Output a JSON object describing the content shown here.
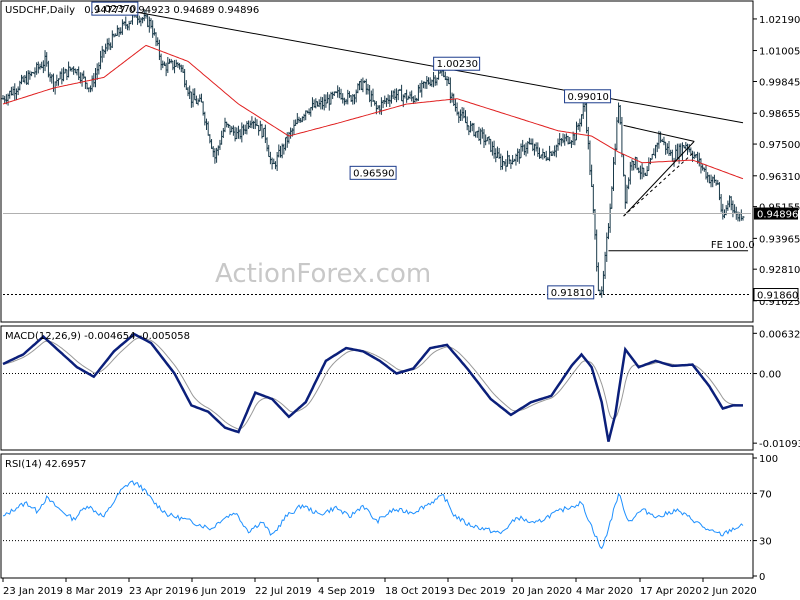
{
  "chart_data": [
    {
      "type": "candlestick",
      "title": "USDCHF,Daily",
      "ohlc_label": "0.94777 0.94923 0.94689 0.94896",
      "last_price": "0.94896",
      "ylim": [
        0.90905,
        1.02825
      ],
      "y_ticks": [
        "1.02190",
        "1.01005",
        "0.99845",
        "0.98655",
        "0.97500",
        "0.96310",
        "0.95155",
        "0.93965",
        "0.92810",
        "0.91625"
      ],
      "x_ticks": [
        "23 Jan 2019",
        "8 Mar 2019",
        "23 Apr 2019",
        "6 Jun 2019",
        "22 Jul 2019",
        "4 Sep 2019",
        "18 Oct 2019",
        "3 Dec 2019",
        "20 Jan 2020",
        "4 Mar 2020",
        "17 Apr 2020",
        "2 Jun 2020"
      ],
      "close_keypoints": [
        [
          0,
          0.992
        ],
        [
          15,
          1.0
        ],
        [
          25,
          1.006
        ],
        [
          30,
          0.998
        ],
        [
          42,
          1.004
        ],
        [
          52,
          0.996
        ],
        [
          60,
          1.01
        ],
        [
          70,
          1.018
        ],
        [
          79,
          1.0237
        ],
        [
          88,
          1.02
        ],
        [
          95,
          1.004
        ],
        [
          105,
          1.005
        ],
        [
          112,
          0.992
        ],
        [
          118,
          0.99
        ],
        [
          126,
          0.97
        ],
        [
          132,
          0.982
        ],
        [
          140,
          0.978
        ],
        [
          148,
          0.985
        ],
        [
          156,
          0.978
        ],
        [
          160,
          0.9659
        ],
        [
          170,
          0.978
        ],
        [
          180,
          0.988
        ],
        [
          190,
          0.99
        ],
        [
          200,
          0.994
        ],
        [
          206,
          0.992
        ],
        [
          214,
          0.998
        ],
        [
          222,
          0.988
        ],
        [
          232,
          0.994
        ],
        [
          244,
          0.992
        ],
        [
          252,
          0.998
        ],
        [
          262,
          1.0023
        ],
        [
          268,
          0.99
        ],
        [
          276,
          0.982
        ],
        [
          288,
          0.976
        ],
        [
          296,
          0.968
        ],
        [
          305,
          0.97
        ],
        [
          312,
          0.975
        ],
        [
          322,
          0.97
        ],
        [
          332,
          0.976
        ],
        [
          340,
          0.978
        ],
        [
          346,
          0.99
        ],
        [
          350,
          0.958
        ],
        [
          354,
          0.922
        ],
        [
          356,
          0.9181
        ],
        [
          360,
          0.945
        ],
        [
          364,
          0.975
        ],
        [
          366,
          0.9901
        ],
        [
          370,
          0.955
        ],
        [
          374,
          0.97
        ],
        [
          382,
          0.962
        ],
        [
          390,
          0.978
        ],
        [
          398,
          0.97
        ],
        [
          406,
          0.975
        ],
        [
          414,
          0.968
        ],
        [
          420,
          0.962
        ],
        [
          425,
          0.96
        ],
        [
          428,
          0.946
        ],
        [
          432,
          0.955
        ],
        [
          436,
          0.948
        ],
        [
          440,
          0.949
        ]
      ],
      "ma_keypoints": [
        [
          0,
          0.99
        ],
        [
          30,
          0.996
        ],
        [
          60,
          1.0
        ],
        [
          85,
          1.012
        ],
        [
          110,
          1.006
        ],
        [
          140,
          0.99
        ],
        [
          170,
          0.978
        ],
        [
          200,
          0.983
        ],
        [
          240,
          0.99
        ],
        [
          270,
          0.992
        ],
        [
          300,
          0.986
        ],
        [
          330,
          0.98
        ],
        [
          350,
          0.978
        ],
        [
          366,
          0.972
        ],
        [
          380,
          0.968
        ],
        [
          410,
          0.969
        ],
        [
          440,
          0.962
        ]
      ],
      "annotations": [
        {
          "label": "1.02370",
          "x": 79,
          "value": 1.0237
        },
        {
          "label": "0.96590",
          "x": 160,
          "value": 0.9659
        },
        {
          "label": "1.00230",
          "x": 262,
          "value": 1.0023
        },
        {
          "label": "0.99010",
          "x": 366,
          "value": 0.9901
        },
        {
          "label": "0.91810",
          "x": 356,
          "value": 0.9181
        },
        {
          "label": "FE 100.0",
          "x": 428,
          "value": 0.935
        },
        {
          "label": "0.91860",
          "x": 440,
          "value": 0.9186
        }
      ],
      "trendline_label_value": 0.9186,
      "watermark": "ActionForex.com"
    },
    {
      "type": "line",
      "title": "MACD(12,26,9) -0.004654 -0.005058",
      "y_ticks": [
        "0.006321",
        "0.00",
        "-0.010939"
      ],
      "ylim": [
        -0.0117,
        0.007
      ],
      "macd_keypoints": [
        [
          0,
          0.0015
        ],
        [
          12,
          0.003
        ],
        [
          24,
          0.0058
        ],
        [
          34,
          0.0034
        ],
        [
          44,
          0.001
        ],
        [
          54,
          -0.0005
        ],
        [
          66,
          0.0035
        ],
        [
          78,
          0.0062
        ],
        [
          88,
          0.0048
        ],
        [
          102,
          0.0
        ],
        [
          112,
          -0.005
        ],
        [
          122,
          -0.006
        ],
        [
          132,
          -0.0085
        ],
        [
          140,
          -0.0092
        ],
        [
          150,
          -0.003
        ],
        [
          160,
          -0.004
        ],
        [
          170,
          -0.0068
        ],
        [
          180,
          -0.0045
        ],
        [
          192,
          0.002
        ],
        [
          204,
          0.004
        ],
        [
          214,
          0.0035
        ],
        [
          224,
          0.002
        ],
        [
          234,
          0.0
        ],
        [
          244,
          0.0008
        ],
        [
          254,
          0.004
        ],
        [
          264,
          0.0045
        ],
        [
          276,
          0.0008
        ],
        [
          290,
          -0.004
        ],
        [
          302,
          -0.0065
        ],
        [
          314,
          -0.0045
        ],
        [
          326,
          -0.0035
        ],
        [
          338,
          0.0012
        ],
        [
          344,
          0.003
        ],
        [
          350,
          0.001
        ],
        [
          356,
          -0.0045
        ],
        [
          360,
          -0.0107
        ],
        [
          364,
          -0.0065
        ],
        [
          370,
          0.0038
        ],
        [
          378,
          0.001
        ],
        [
          388,
          0.002
        ],
        [
          398,
          0.0012
        ],
        [
          410,
          0.0014
        ],
        [
          420,
          -0.002
        ],
        [
          428,
          -0.0055
        ],
        [
          434,
          -0.005
        ],
        [
          440,
          -0.005
        ]
      ]
    },
    {
      "type": "line",
      "title": "RSI(14) 42.6957",
      "y_ticks": [
        "100",
        "70",
        "30",
        "0"
      ],
      "ylim": [
        0,
        100
      ],
      "levels": [
        70,
        30
      ],
      "rsi_keypoints": [
        [
          0,
          50
        ],
        [
          8,
          58
        ],
        [
          14,
          62
        ],
        [
          20,
          55
        ],
        [
          26,
          66
        ],
        [
          34,
          56
        ],
        [
          42,
          48
        ],
        [
          50,
          60
        ],
        [
          60,
          50
        ],
        [
          70,
          72
        ],
        [
          76,
          80
        ],
        [
          82,
          76
        ],
        [
          90,
          62
        ],
        [
          98,
          52
        ],
        [
          108,
          48
        ],
        [
          116,
          44
        ],
        [
          124,
          40
        ],
        [
          130,
          48
        ],
        [
          138,
          54
        ],
        [
          146,
          38
        ],
        [
          154,
          46
        ],
        [
          160,
          34
        ],
        [
          168,
          50
        ],
        [
          178,
          60
        ],
        [
          188,
          52
        ],
        [
          198,
          58
        ],
        [
          206,
          50
        ],
        [
          214,
          60
        ],
        [
          222,
          46
        ],
        [
          232,
          56
        ],
        [
          244,
          54
        ],
        [
          254,
          62
        ],
        [
          262,
          68
        ],
        [
          268,
          52
        ],
        [
          276,
          44
        ],
        [
          286,
          40
        ],
        [
          296,
          36
        ],
        [
          306,
          50
        ],
        [
          316,
          44
        ],
        [
          326,
          52
        ],
        [
          336,
          58
        ],
        [
          344,
          62
        ],
        [
          350,
          42
        ],
        [
          356,
          22
        ],
        [
          362,
          50
        ],
        [
          366,
          70
        ],
        [
          372,
          46
        ],
        [
          380,
          56
        ],
        [
          390,
          50
        ],
        [
          400,
          56
        ],
        [
          410,
          48
        ],
        [
          420,
          38
        ],
        [
          428,
          35
        ],
        [
          434,
          40
        ],
        [
          440,
          42.7
        ]
      ]
    }
  ]
}
